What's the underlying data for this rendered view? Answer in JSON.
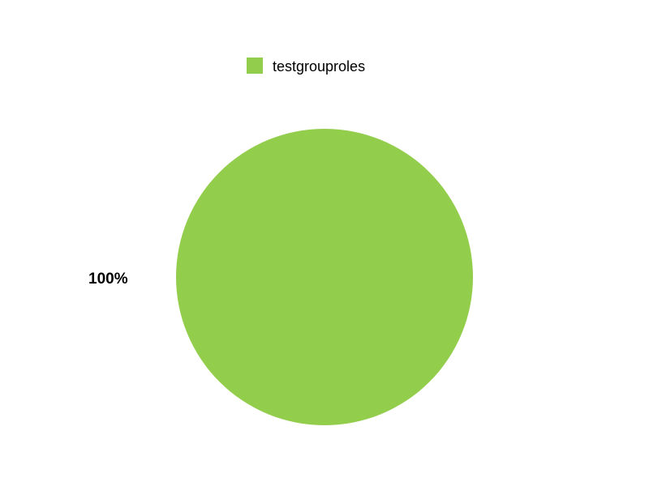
{
  "chart_data": {
    "type": "pie",
    "categories": [
      "testgrouproles"
    ],
    "values": [
      100
    ],
    "colors": [
      "#92cd4c"
    ],
    "slice_labels": [
      "100%"
    ],
    "legend": {
      "entries": [
        "testgrouproles"
      ],
      "placement": "top-center"
    }
  }
}
